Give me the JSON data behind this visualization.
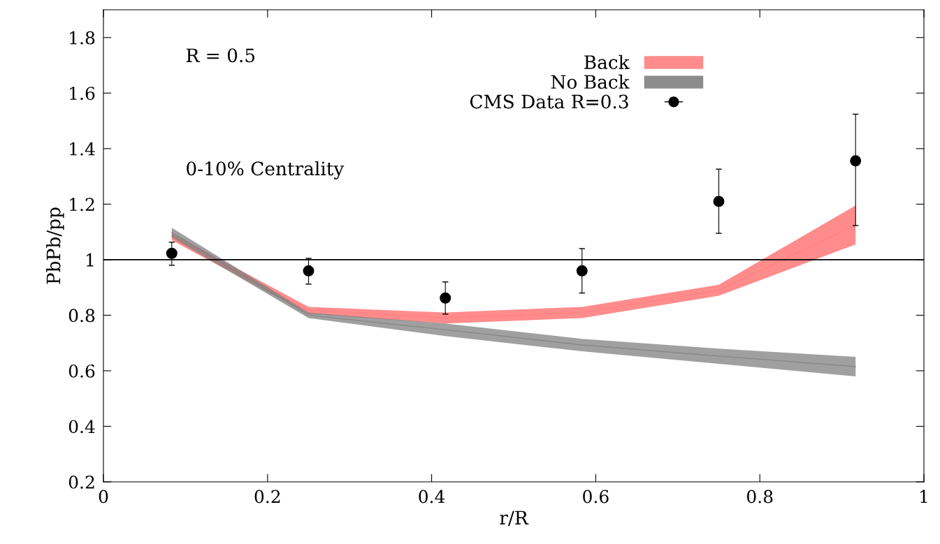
{
  "chart_data": {
    "type": "line",
    "xlabel": "r/R",
    "ylabel": "PbPb/pp",
    "xlim": [
      0,
      1
    ],
    "ylim": [
      0.2,
      1.9
    ],
    "xticks": [
      0,
      0.2,
      0.4,
      0.6,
      0.8,
      1
    ],
    "yticks": [
      0.2,
      0.4,
      0.6,
      0.8,
      1,
      1.2,
      1.4,
      1.6,
      1.8
    ],
    "x": [
      0.0833,
      0.25,
      0.4167,
      0.5833,
      0.75,
      0.9167
    ],
    "series": [
      {
        "name": "Back",
        "color": "#ff7f7f",
        "values": [
          1.083,
          0.818,
          0.79,
          0.81,
          0.89,
          1.125
        ],
        "lower": [
          1.07,
          0.805,
          0.77,
          0.79,
          0.87,
          1.055
        ],
        "upper": [
          1.095,
          0.83,
          0.81,
          0.83,
          0.91,
          1.195
        ]
      },
      {
        "name": "No Back",
        "color": "#808080",
        "values": [
          1.098,
          0.8,
          0.748,
          0.693,
          0.653,
          0.615
        ],
        "lower": [
          1.08,
          0.79,
          0.725,
          0.67,
          0.625,
          0.58
        ],
        "upper": [
          1.115,
          0.81,
          0.77,
          0.715,
          0.68,
          0.65
        ]
      },
      {
        "name": "CMS Data R=0.3",
        "type": "scatter",
        "color": "#000000",
        "marker": "circle",
        "values": [
          1.023,
          0.96,
          0.862,
          0.96,
          1.21,
          1.356
        ],
        "errors": [
          [
            0.98,
            1.063
          ],
          [
            0.912,
            1.005
          ],
          [
            0.804,
            0.92
          ],
          [
            0.88,
            1.04
          ],
          [
            1.095,
            1.326
          ],
          [
            1.123,
            1.524
          ]
        ]
      }
    ],
    "ref_lines": [
      {
        "axis": "y",
        "value": 1,
        "color": "#000000"
      }
    ],
    "annotations": [
      "R = 0.5",
      "0-10% Centrality"
    ],
    "legend": "top right",
    "grid": false
  }
}
